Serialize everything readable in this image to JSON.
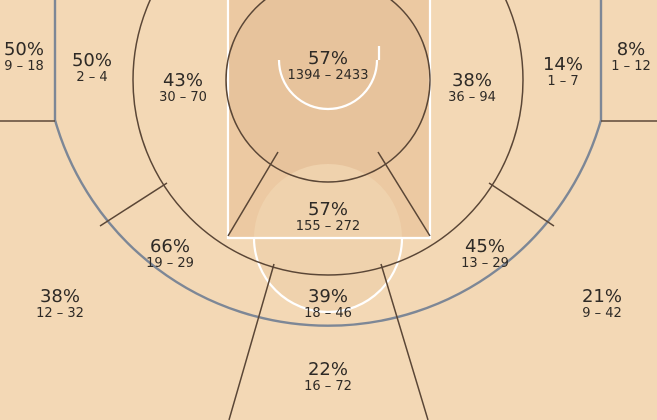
{
  "chart_data": {
    "type": "shot-chart",
    "zones": [
      {
        "id": "left-corner-three",
        "pct": "50%",
        "made": 9,
        "attempted": 18
      },
      {
        "id": "left-mid-corner-baseline",
        "pct": "50%",
        "made": 2,
        "attempted": 4
      },
      {
        "id": "left-baseline-mid",
        "pct": "43%",
        "made": 30,
        "attempted": 70
      },
      {
        "id": "restricted-area",
        "pct": "57%",
        "made": 1394,
        "attempted": 2433
      },
      {
        "id": "right-baseline-mid",
        "pct": "38%",
        "made": 36,
        "attempted": 94
      },
      {
        "id": "right-mid-corner-baseline",
        "pct": "14%",
        "made": 1,
        "attempted": 7
      },
      {
        "id": "right-corner-three",
        "pct": "8%",
        "made": 1,
        "attempted": 12
      },
      {
        "id": "paint-non-ra",
        "pct": "57%",
        "made": 155,
        "attempted": 272
      },
      {
        "id": "left-wing-mid",
        "pct": "66%",
        "made": 19,
        "attempted": 29
      },
      {
        "id": "right-wing-mid",
        "pct": "45%",
        "made": 13,
        "attempted": 29
      },
      {
        "id": "top-key-mid",
        "pct": "39%",
        "made": 18,
        "attempted": 46
      },
      {
        "id": "left-wing-three",
        "pct": "38%",
        "made": 12,
        "attempted": 32
      },
      {
        "id": "right-wing-three",
        "pct": "21%",
        "made": 9,
        "attempted": 42
      },
      {
        "id": "top-key-three",
        "pct": "22%",
        "made": 16,
        "attempted": 72
      }
    ],
    "colors": {
      "floor": "#f3d8b5",
      "restricted": "#e7c39c",
      "paint": "#ecc9a2",
      "zone_line": "#5a4636",
      "court_line": "#ffffff",
      "three_line": "#7d8796",
      "text": "#2e2a26"
    }
  }
}
